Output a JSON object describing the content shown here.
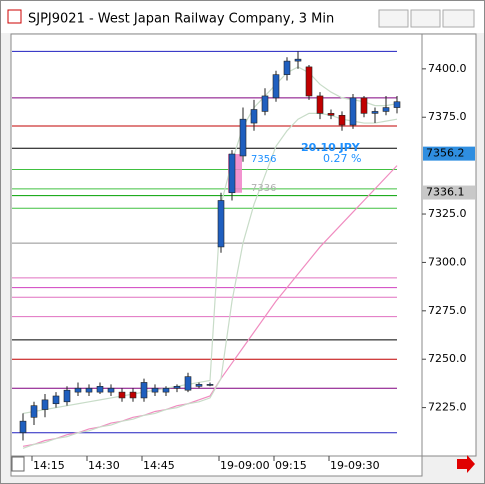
{
  "chart_data": {
    "type": "candlestick",
    "title": "SJPJ9021 - West Japan Railway Company, 3 Min",
    "categories": [
      null,
      "14:15",
      null,
      null,
      null,
      null,
      "14:30",
      null,
      null,
      null,
      null,
      "14:45",
      null,
      null,
      null,
      null,
      null,
      null,
      "19-09:00",
      null,
      null,
      null,
      null,
      "09:15",
      null,
      null,
      null,
      null,
      "19-09:30",
      null,
      null,
      null,
      null,
      null,
      null
    ],
    "open": [
      7212,
      7220,
      7224,
      7227,
      7228,
      7233,
      7233,
      7233,
      7233,
      7233,
      7233,
      7230,
      7233,
      7233,
      7235,
      7234,
      7236,
      7237,
      7308,
      7336,
      7355,
      7372,
      7378,
      7385,
      7397,
      7404,
      7401,
      7386,
      7377,
      7376,
      7371,
      7385,
      7377,
      7378,
      7380
    ],
    "high": [
      7222,
      7228,
      7232,
      7233,
      7236,
      7238,
      7237,
      7238,
      7237,
      7235,
      7235,
      7240,
      7237,
      7236,
      7237,
      7243,
      7238,
      7238,
      7336,
      7358,
      7380,
      7384,
      7390,
      7399,
      7406,
      7409,
      7402,
      7388,
      7379,
      7378,
      7387,
      7386,
      7380,
      7386,
      7386
    ],
    "low": [
      7208,
      7216,
      7220,
      7225,
      7226,
      7231,
      7231,
      7232,
      7231,
      7228,
      7228,
      7228,
      7231,
      7231,
      7233,
      7233,
      7235,
      7236,
      7305,
      7332,
      7352,
      7368,
      7376,
      7383,
      7394,
      7400,
      7384,
      7374,
      7374,
      7368,
      7369,
      7375,
      7372,
      7376,
      7377
    ],
    "close": [
      7218,
      7226,
      7229,
      7231,
      7234,
      7235,
      7235,
      7236,
      7235,
      7230,
      7230,
      7238,
      7235,
      7235,
      7236,
      7241,
      7237,
      7237,
      7332,
      7356,
      7374,
      7379,
      7386,
      7397,
      7404,
      7405,
      7386,
      7377,
      7376,
      7371,
      7385,
      7377,
      7378,
      7380,
      7383
    ],
    "up_color": "#1f5fbf",
    "down_color": "#c00000",
    "series": [
      {
        "color": "#f08cc0",
        "values": [
          7205,
          7206,
          7208,
          7209,
          7211,
          7212,
          7214,
          7215,
          7217,
          7218,
          7220,
          7221,
          7223,
          7224,
          7226,
          7227,
          7229,
          7231,
          7240,
          7248,
          7256,
          7264,
          7272,
          7280,
          7287,
          7294,
          7301,
          7308,
          7314,
          7320,
          7326,
          7332,
          7338,
          7344,
          7350
        ]
      },
      {
        "color": "#c8dcc8",
        "values": [
          7222,
          7223,
          7224,
          7225,
          7226,
          7227,
          7228,
          7229,
          7230,
          7231,
          7232,
          7233,
          7234,
          7235,
          7236,
          7237,
          7238,
          7239,
          7330,
          7352,
          7370,
          7380,
          7386,
          7392,
          7398,
          7401,
          7398,
          7392,
          7388,
          7385,
          7384,
          7383,
          7381,
          7381,
          7382
        ]
      },
      {
        "color": "#c8dcc8",
        "values": [
          7204,
          7206,
          7207,
          7209,
          7210,
          7212,
          7213,
          7215,
          7216,
          7218,
          7219,
          7221,
          7222,
          7224,
          7225,
          7227,
          7228,
          7230,
          7240,
          7280,
          7310,
          7330,
          7345,
          7360,
          7368,
          7374,
          7377,
          7377,
          7376,
          7374,
          7373,
          7372,
          7372,
          7373,
          7374
        ]
      }
    ],
    "levels": [
      {
        "value": 7409,
        "color": "#2020c0"
      },
      {
        "value": 7385,
        "color": "#800080"
      },
      {
        "value": 7370.5,
        "color": "#c00000"
      },
      {
        "value": 7359,
        "color": "#000000"
      },
      {
        "value": 7348,
        "color": "#40c040"
      },
      {
        "value": 7338,
        "color": "#40c040"
      },
      {
        "value": 7334.5,
        "color": "#00a000"
      },
      {
        "value": 7328,
        "color": "#40c040"
      },
      {
        "value": 7310,
        "color": "#909090"
      },
      {
        "value": 7292,
        "color": "#e070c0"
      },
      {
        "value": 7287,
        "color": "#d040c0"
      },
      {
        "value": 7282,
        "color": "#e070c0"
      },
      {
        "value": 7272,
        "color": "#e070c0"
      },
      {
        "value": 7260,
        "color": "#000000"
      },
      {
        "value": 7250,
        "color": "#c00000"
      },
      {
        "value": 7235,
        "color": "#800080"
      },
      {
        "value": 7212,
        "color": "#2020c0"
      }
    ],
    "highlight": {
      "from": 7336,
      "to": 7356,
      "color": "#f080c8"
    },
    "price_markers": [
      {
        "value": 7356.2,
        "color": "#2f8ee0"
      },
      {
        "value": 7336.1,
        "color": "#c8c8c8"
      }
    ],
    "annotations": {
      "change": "20.10 JPY",
      "percent": "0.27 %",
      "high": "7356",
      "low": "7336"
    },
    "ylim": [
      7200,
      7418
    ],
    "yticks": [
      {
        "value": 7225,
        "label": "7225.0"
      },
      {
        "value": 7250,
        "label": "7250.0"
      },
      {
        "value": 7275,
        "label": "7275.0"
      },
      {
        "value": 7300,
        "label": "7300.0"
      },
      {
        "value": 7325,
        "label": "7325.0"
      },
      {
        "value": 7375,
        "label": "7375.0"
      },
      {
        "value": 7400,
        "label": "7400.0"
      }
    ]
  }
}
